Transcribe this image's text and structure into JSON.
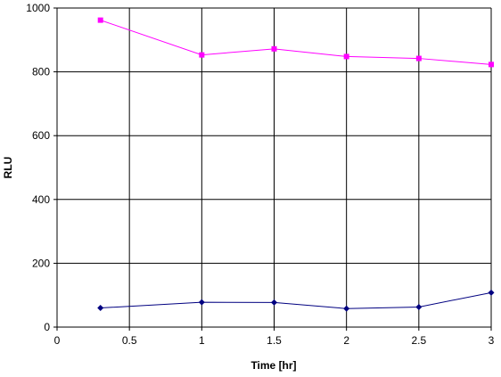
{
  "chart_data": {
    "type": "line",
    "title": "",
    "xlabel": "Time [hr]",
    "ylabel": "RLU",
    "xlim": [
      0,
      3
    ],
    "ylim": [
      0,
      1000
    ],
    "x_ticks": [
      0,
      0.5,
      1,
      1.5,
      2,
      2.5,
      3
    ],
    "y_ticks": [
      0,
      200,
      400,
      600,
      800,
      1000
    ],
    "grid": true,
    "legend": "none",
    "series": [
      {
        "color": "#ff00ff",
        "marker": "square",
        "x": [
          0.3,
          1,
          1.5,
          2,
          2.5,
          3
        ],
        "values": [
          962,
          853,
          872,
          848,
          842,
          823
        ]
      },
      {
        "color": "#000080",
        "marker": "diamond",
        "x": [
          0.3,
          1,
          1.5,
          2,
          2.5,
          3
        ],
        "values": [
          60,
          78,
          77,
          58,
          63,
          108
        ]
      }
    ]
  }
}
